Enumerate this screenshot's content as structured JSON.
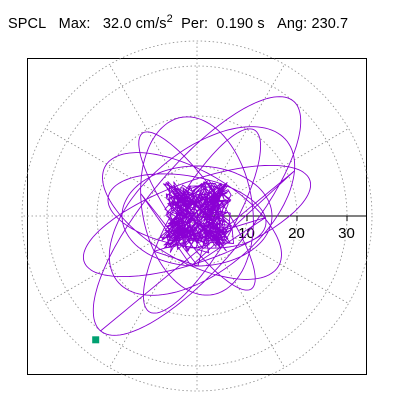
{
  "header": {
    "station": "SPCL",
    "max_label": "Max:",
    "max_value": "32.0 cm/s",
    "max_exp": "2",
    "per_label": "Per:",
    "per_value": "0.190 s",
    "ang_label": "Ang:",
    "ang_value": "230.7"
  },
  "chart_data": {
    "type": "polar-particle-motion",
    "radial_ticks": [
      10,
      20,
      30
    ],
    "rmax": 35,
    "angular_grid_step_deg": 30,
    "grid": "dotted",
    "trace_color": "#8a00d4",
    "marker_color": "#00a070",
    "peak": {
      "amplitude": 32.0,
      "angle_deg": 230.7
    }
  }
}
